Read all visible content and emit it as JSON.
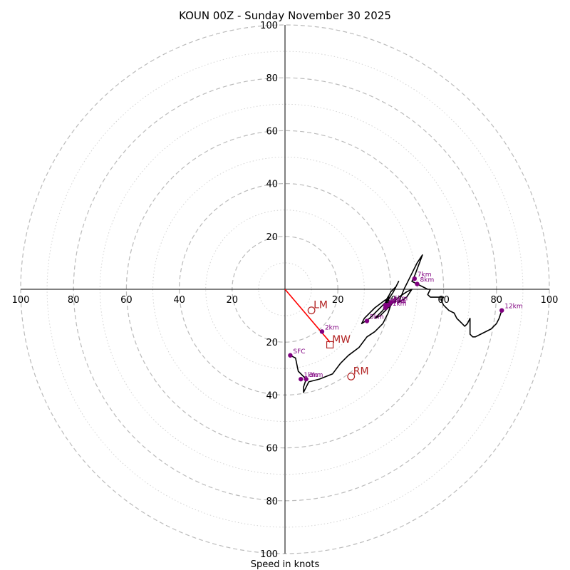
{
  "chart_data": {
    "type": "hodograph",
    "title": "KOUN 00Z - Sunday November 30 2025",
    "xlabel": "Speed in knots",
    "units": "knots",
    "max_speed": 100,
    "ring_labels": [
      "20",
      "40",
      "60",
      "80",
      "100"
    ],
    "rings_major": [
      20,
      40,
      60,
      80,
      100
    ],
    "rings_minor": [
      10,
      30,
      50,
      70,
      90
    ],
    "colors": {
      "trace": "#000000",
      "height_points": "#800080",
      "motion": "#b22222",
      "shear_vector": "#ff0000",
      "major_ring": "#bbbbbb",
      "minor_ring": "#d3d3d3"
    },
    "trace_uv": [
      [
        2,
        -25
      ],
      [
        4,
        -26
      ],
      [
        5,
        -31
      ],
      [
        8,
        -34
      ],
      [
        7,
        -37
      ],
      [
        7,
        -39
      ],
      [
        9,
        -35
      ],
      [
        13,
        -34
      ],
      [
        18,
        -32
      ],
      [
        21,
        -28
      ],
      [
        24,
        -25
      ],
      [
        28,
        -22
      ],
      [
        31,
        -18
      ],
      [
        34,
        -16
      ],
      [
        37,
        -13
      ],
      [
        39,
        -9
      ],
      [
        40,
        -6
      ],
      [
        38,
        -4
      ],
      [
        34,
        -7
      ],
      [
        30,
        -11
      ],
      [
        29,
        -13
      ],
      [
        32,
        -11
      ],
      [
        36,
        -7
      ],
      [
        38,
        -5
      ],
      [
        39,
        -3
      ],
      [
        40,
        -1
      ],
      [
        42,
        1
      ],
      [
        43,
        3
      ],
      [
        41,
        -1
      ],
      [
        39,
        -4
      ],
      [
        37,
        -8
      ],
      [
        34,
        -11
      ],
      [
        36,
        -10
      ],
      [
        39,
        -7
      ],
      [
        41,
        -5
      ],
      [
        43,
        -3
      ],
      [
        46,
        -1
      ],
      [
        48,
        0
      ],
      [
        46,
        -3
      ],
      [
        43,
        -5
      ],
      [
        45,
        0
      ],
      [
        47,
        4
      ],
      [
        48,
        6
      ],
      [
        50,
        10
      ],
      [
        52,
        13
      ],
      [
        49,
        5
      ],
      [
        48,
        3
      ],
      [
        50,
        2
      ],
      [
        54,
        0
      ],
      [
        55,
        0
      ],
      [
        54,
        -2
      ],
      [
        55,
        -3
      ],
      [
        56,
        -3
      ],
      [
        60,
        -3
      ],
      [
        59,
        -4
      ],
      [
        60,
        -6
      ],
      [
        62,
        -8
      ],
      [
        64,
        -9
      ],
      [
        65,
        -11
      ],
      [
        66,
        -12
      ],
      [
        67,
        -13
      ],
      [
        68,
        -14
      ],
      [
        69,
        -13
      ],
      [
        70,
        -11
      ],
      [
        70,
        -15
      ],
      [
        70,
        -17
      ],
      [
        71,
        -18
      ],
      [
        72,
        -18
      ],
      [
        74,
        -17
      ],
      [
        78,
        -15
      ],
      [
        80,
        -13
      ],
      [
        81,
        -11
      ],
      [
        82,
        -8
      ]
    ],
    "height_points": [
      {
        "label": "SFC",
        "u": 2,
        "v": -25
      },
      {
        "label": "1km",
        "u": 6,
        "v": -34
      },
      {
        "label": "2km",
        "u": 14,
        "v": -16
      },
      {
        "label": "3km",
        "u": 8,
        "v": -34
      },
      {
        "label": "4km",
        "u": 39,
        "v": -6
      },
      {
        "label": "5km",
        "u": 31,
        "v": -12
      },
      {
        "label": "6km",
        "u": 40,
        "v": -5
      },
      {
        "label": "7km",
        "u": 49,
        "v": 4
      },
      {
        "label": "8km",
        "u": 50,
        "v": 2
      },
      {
        "label": "9km",
        "u": 39,
        "v": -6
      },
      {
        "label": "10km",
        "u": 38,
        "v": -6
      },
      {
        "label": "11km",
        "u": 38,
        "v": -7
      },
      {
        "label": "12km",
        "u": 82,
        "v": -8
      }
    ],
    "storm_motion": {
      "LM": {
        "label": "LM",
        "u": 10,
        "v": -8,
        "marker": "circle"
      },
      "MW": {
        "label": "MW",
        "u": 17,
        "v": -21,
        "marker": "square"
      },
      "RM": {
        "label": "RM",
        "u": 25,
        "v": -33,
        "marker": "circle"
      }
    },
    "shear_vector": {
      "from_u": 0,
      "from_v": 0,
      "to_u": 17,
      "to_v": -20
    }
  }
}
